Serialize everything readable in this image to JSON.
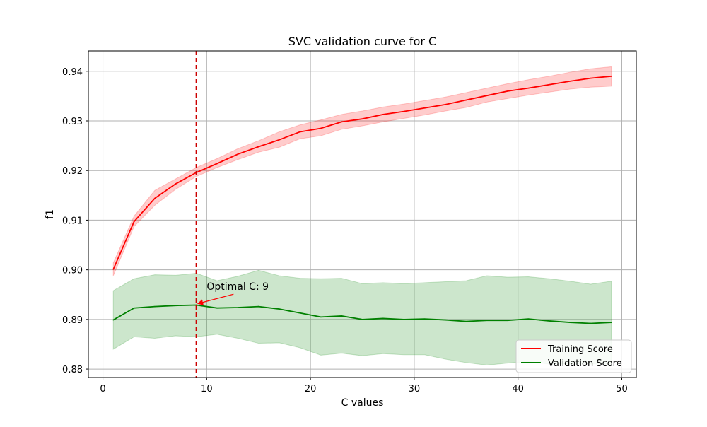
{
  "chart_data": {
    "type": "line",
    "title": "SVC validation curve for C",
    "xlabel": "C values",
    "ylabel": "f1",
    "xlim": [
      -1.4,
      51.4
    ],
    "ylim": [
      0.8783,
      0.9441
    ],
    "xticks": [
      0,
      10,
      20,
      30,
      40,
      50
    ],
    "yticks": [
      0.88,
      0.89,
      0.9,
      0.91,
      0.92,
      0.93,
      0.94
    ],
    "xtick_labels": [
      "0",
      "10",
      "20",
      "30",
      "40",
      "50"
    ],
    "ytick_labels": [
      "0.88",
      "0.89",
      "0.90",
      "0.91",
      "0.92",
      "0.93",
      "0.94"
    ],
    "grid": true,
    "legend_position": "lower-right",
    "x": [
      1,
      3,
      5,
      7,
      9,
      11,
      13,
      15,
      17,
      19,
      21,
      23,
      25,
      27,
      29,
      31,
      33,
      35,
      37,
      39,
      41,
      43,
      45,
      47,
      49
    ],
    "series": [
      {
        "name": "Training Score",
        "color": "#ff0000",
        "band_color": "#ff0000",
        "values": [
          0.9001,
          0.9097,
          0.9144,
          0.9173,
          0.9196,
          0.9214,
          0.9233,
          0.9248,
          0.9262,
          0.9278,
          0.9285,
          0.9298,
          0.9304,
          0.9313,
          0.9319,
          0.9326,
          0.9333,
          0.9342,
          0.9351,
          0.936,
          0.9366,
          0.9373,
          0.938,
          0.9386,
          0.939
        ],
        "lower": [
          0.8988,
          0.9087,
          0.913,
          0.9162,
          0.9188,
          0.9206,
          0.9222,
          0.9237,
          0.9247,
          0.9264,
          0.927,
          0.9283,
          0.929,
          0.9298,
          0.9305,
          0.9312,
          0.932,
          0.9327,
          0.9338,
          0.9345,
          0.9352,
          0.9358,
          0.9364,
          0.9368,
          0.937
        ],
        "upper": [
          0.9014,
          0.9108,
          0.916,
          0.9183,
          0.9206,
          0.9224,
          0.9244,
          0.926,
          0.9278,
          0.9292,
          0.9302,
          0.9313,
          0.932,
          0.9328,
          0.9334,
          0.9341,
          0.9348,
          0.9357,
          0.9366,
          0.9375,
          0.9383,
          0.939,
          0.9398,
          0.9405,
          0.9409
        ]
      },
      {
        "name": "Validation Score",
        "color": "#008000",
        "band_color": "#008000",
        "values": [
          0.8899,
          0.8923,
          0.8926,
          0.8928,
          0.8929,
          0.8923,
          0.8924,
          0.8926,
          0.8921,
          0.8913,
          0.8905,
          0.8907,
          0.89,
          0.8902,
          0.89,
          0.8901,
          0.8899,
          0.8896,
          0.8898,
          0.8898,
          0.8901,
          0.8897,
          0.8894,
          0.8892,
          0.8894
        ],
        "lower": [
          0.884,
          0.8865,
          0.8862,
          0.8867,
          0.8865,
          0.887,
          0.8862,
          0.8852,
          0.8853,
          0.8843,
          0.8828,
          0.8832,
          0.8827,
          0.8831,
          0.8829,
          0.8829,
          0.882,
          0.8813,
          0.8808,
          0.8812,
          0.8815,
          0.881,
          0.881,
          0.881,
          0.881
        ],
        "upper": [
          0.8958,
          0.8982,
          0.899,
          0.8989,
          0.8993,
          0.8978,
          0.8987,
          0.8999,
          0.8988,
          0.8983,
          0.8982,
          0.8983,
          0.8972,
          0.8974,
          0.8972,
          0.8974,
          0.8976,
          0.8978,
          0.8988,
          0.8985,
          0.8986,
          0.8982,
          0.8977,
          0.8971,
          0.8977
        ]
      }
    ],
    "vline": {
      "x": 9,
      "color": "#cc0000",
      "style": "dashed"
    },
    "annotation": {
      "text": "Optimal C: 9",
      "point_x": 9,
      "point_y": 0.8929,
      "text_x": 10,
      "text_y": 0.8965,
      "color": "#ff0000"
    }
  }
}
